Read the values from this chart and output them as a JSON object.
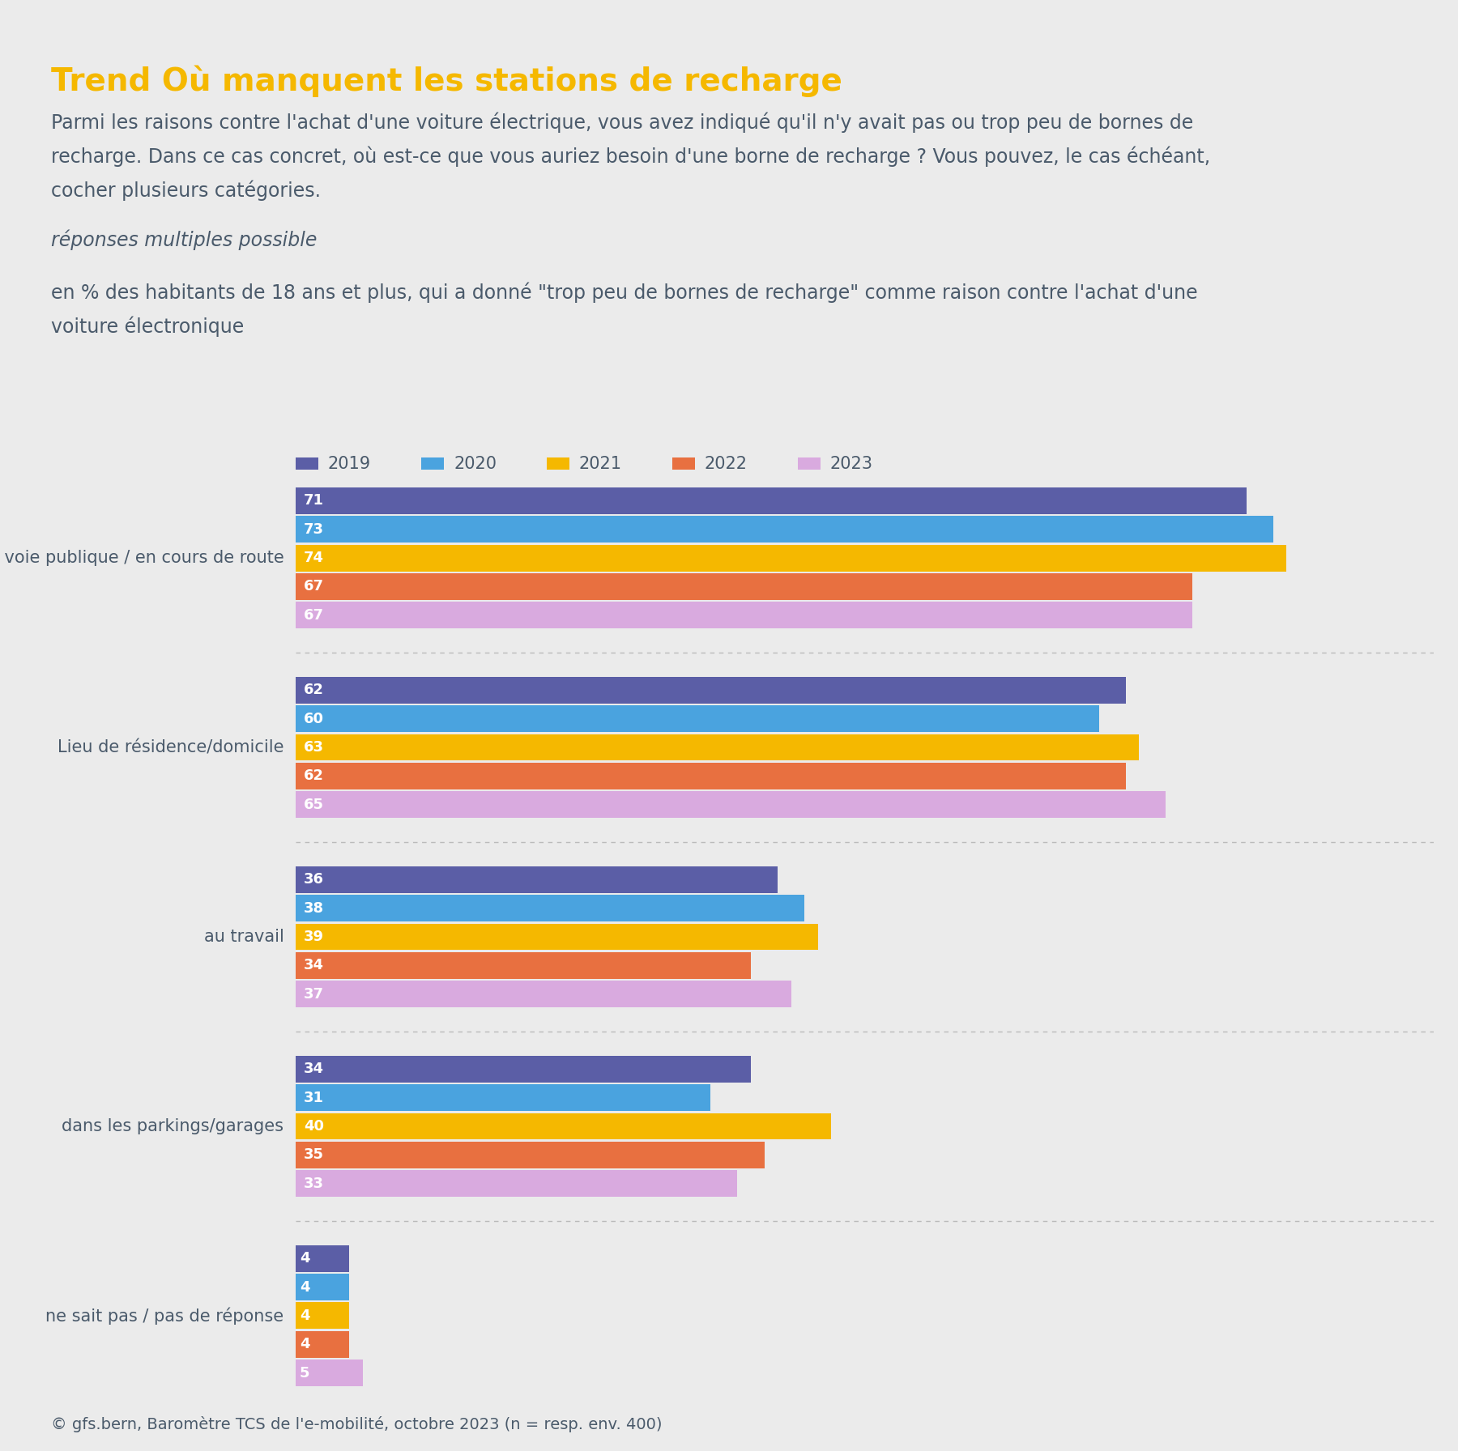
{
  "title": "Trend Où manquent les stations de recharge",
  "desc1": "Parmi les raisons contre l'achat d'une voiture électrique, vous avez indiqué qu'il n'y avait pas ou trop peu de bornes de",
  "desc2": "recharge. Dans ce cas concret, où est-ce que vous auriez besoin d'une borne de recharge ? Vous pouvez, le cas échéant,",
  "desc3": "cocher plusieurs catégories.",
  "italic_note": "réponses multiples possible",
  "subtitle1": "en % des habitants de 18 ans et plus, qui a donné \"trop peu de bornes de recharge\" comme raison contre l'achat d'une",
  "subtitle2": "voiture électronique",
  "footer": "© gfs.bern, Baromètre TCS de l'e-mobilité, octobre 2023 (n = resp. env. 400)",
  "top_bar_color": "#F5B800",
  "bg_color": "#EBEBEB",
  "white_color": "#FFFFFF",
  "title_color": "#F5B800",
  "text_color": "#4A5A6B",
  "sep_color": "#CCCCCC",
  "years": [
    "2019",
    "2020",
    "2021",
    "2022",
    "2023"
  ],
  "year_colors": [
    "#5B5EA6",
    "#4AA3DF",
    "#F5B800",
    "#E87040",
    "#D9AADF"
  ],
  "categories": [
    "sur la voie publique / en cours de route",
    "Lieu de résidence/domicile",
    "au travail",
    "dans les parkings/garages",
    "ne sait pas / pas de réponse"
  ],
  "values": [
    [
      71,
      73,
      74,
      67,
      67
    ],
    [
      62,
      60,
      63,
      62,
      65
    ],
    [
      36,
      38,
      39,
      34,
      37
    ],
    [
      34,
      31,
      40,
      35,
      33
    ],
    [
      4,
      4,
      4,
      4,
      5
    ]
  ],
  "xlim_max": 85
}
